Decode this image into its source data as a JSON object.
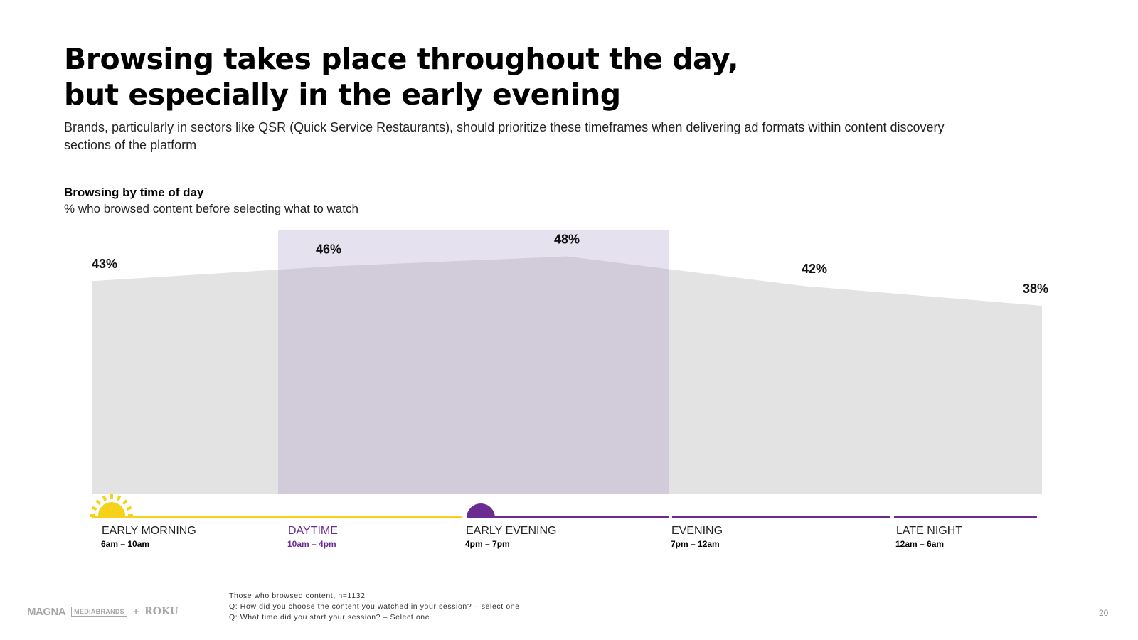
{
  "title": {
    "line1": "Browsing takes place throughout the day,",
    "line2": "but especially in the early evening"
  },
  "subtitle": "Brands, particularly in sectors like QSR (Quick Service Restaurants), should prioritize these timeframes when delivering ad formats within content discovery sections of the platform",
  "chart_heading": {
    "title": "Browsing by time of day",
    "subtitle": "% who browsed content before selecting what to watch"
  },
  "colors": {
    "area": "#e3e3e3",
    "highlight": "#e6e1ef",
    "overlap": "#d2cbda",
    "yellow": "#f6d21b",
    "purple": "#6a2c91"
  },
  "chart_data": {
    "type": "area",
    "title": "Browsing by time of day",
    "subtitle": "% who browsed content before selecting what to watch",
    "unit": "%",
    "categories": [
      "Early Morning",
      "Daytime",
      "Early Evening",
      "Evening",
      "Late Night"
    ],
    "values": [
      43,
      46,
      48,
      42,
      38
    ],
    "labels": [
      "43%",
      "46%",
      "48%",
      "42%",
      "38%"
    ],
    "highlight": {
      "from_category": "Daytime",
      "to_category": "Early Evening"
    },
    "ylim": [
      0,
      55
    ],
    "grid": false
  },
  "segments": [
    {
      "label": "EARLY MORNING",
      "time": "6am – 10am",
      "color": "#f6d21b",
      "icon": "sun-icon"
    },
    {
      "label": "DAYTIME",
      "time": "10am – 4pm",
      "color": "#f6d21b",
      "icon": ""
    },
    {
      "label": "EARLY EVENING",
      "time": "4pm – 7pm",
      "color": "#6a2c91",
      "icon": "sunset-icon"
    },
    {
      "label": "EVENING",
      "time": "7pm – 12am",
      "color": "#6a2c91",
      "icon": ""
    },
    {
      "label": "LATE NIGHT",
      "time": "12am – 6am",
      "color": "#6a2c91",
      "icon": ""
    }
  ],
  "footnotes": [
    "Those who browsed content, n=1132",
    "Q: How did you choose the content you watched in your session? – select one",
    "Q: What time did you start your session? – Select one"
  ],
  "logos": {
    "magna": "MAGNA",
    "partner": "MEDIABRANDS",
    "plus": "+",
    "roku": "ROKU"
  },
  "page_number": "20"
}
